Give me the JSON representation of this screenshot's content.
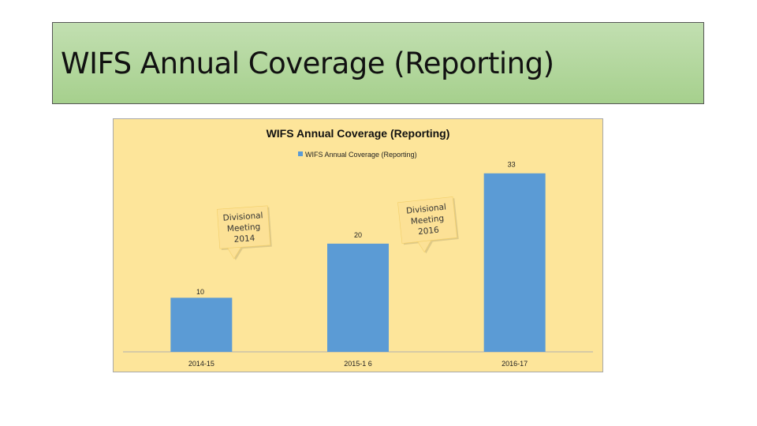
{
  "slide": {
    "title": "WIFS Annual Coverage (Reporting)"
  },
  "colors": {
    "banner": "#a9d18e",
    "chart_background": "#fde59a",
    "bar": "#5b9bd5",
    "callout": "#fce196"
  },
  "chart_data": {
    "type": "bar",
    "title": "WIFS Annual Coverage (Reporting)",
    "legend": {
      "position": "top",
      "entries": [
        "WIFS Annual Coverage (Reporting)"
      ]
    },
    "categories": [
      "2014-15",
      "2015-1 6",
      "2016-17"
    ],
    "series": [
      {
        "name": "WIFS Annual Coverage (Reporting)",
        "values": [
          10,
          20,
          33
        ]
      }
    ],
    "data_labels": [
      "10",
      "20",
      "33"
    ],
    "ylim": [
      0,
      35
    ],
    "grid": false,
    "xlabel": "",
    "ylabel": "",
    "annotations": [
      {
        "lines": [
          "Divisional",
          "Meeting",
          "2014"
        ]
      },
      {
        "lines": [
          "Divisional",
          "Meeting",
          "2016"
        ]
      }
    ]
  }
}
